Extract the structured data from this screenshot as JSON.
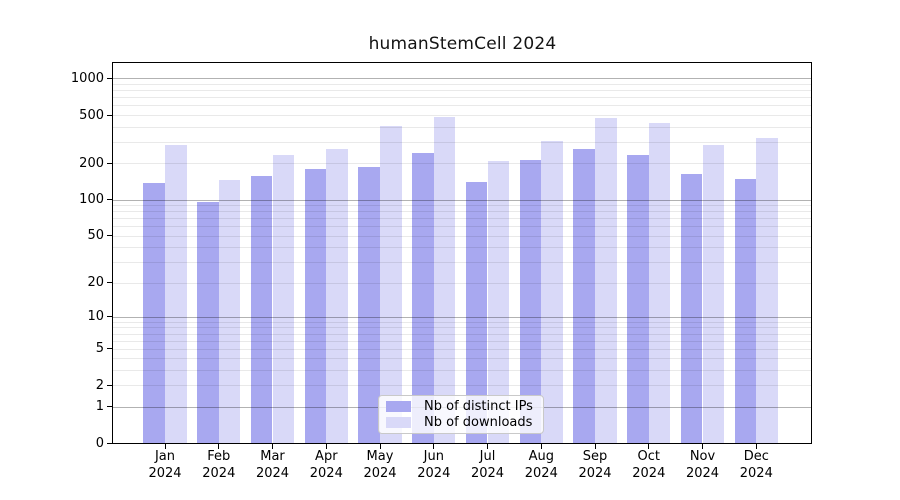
{
  "chart_data": {
    "type": "bar",
    "title": "humanStemCell 2024",
    "categories": [
      "Jan",
      "Feb",
      "Mar",
      "Apr",
      "May",
      "Jun",
      "Jul",
      "Aug",
      "Sep",
      "Oct",
      "Nov",
      "Dec"
    ],
    "category_year": "2024",
    "series": [
      {
        "name": "Nb of distinct IPs",
        "color": "#a8a8f0",
        "values": [
          138,
          96,
          158,
          181,
          187,
          244,
          139,
          211,
          260,
          234,
          163,
          148
        ]
      },
      {
        "name": "Nb of downloads",
        "color": "#d9d9f8",
        "values": [
          284,
          145,
          236,
          262,
          406,
          484,
          209,
          305,
          475,
          428,
          283,
          326
        ]
      }
    ],
    "xlabel": "",
    "ylabel": "",
    "y_scale": "log10(value+1)",
    "y_ticks": [
      0,
      1,
      2,
      5,
      10,
      20,
      50,
      100,
      200,
      500,
      1000
    ],
    "grid_major_values": [
      1,
      10,
      100,
      1000
    ],
    "grid_minor_bases": [
      2,
      3,
      4,
      5,
      6,
      7,
      8,
      9
    ],
    "ylim": [
      0,
      1360
    ],
    "grid": "on",
    "legend_position": "inside-bottom-center"
  },
  "colors": {
    "background": "#ffffff",
    "spine": "#000000",
    "series_ips": "#a8a8f0",
    "series_downloads": "#d9d9f8",
    "grid_major": "#b5b5b5",
    "grid_minor": "#e8e8e8"
  }
}
